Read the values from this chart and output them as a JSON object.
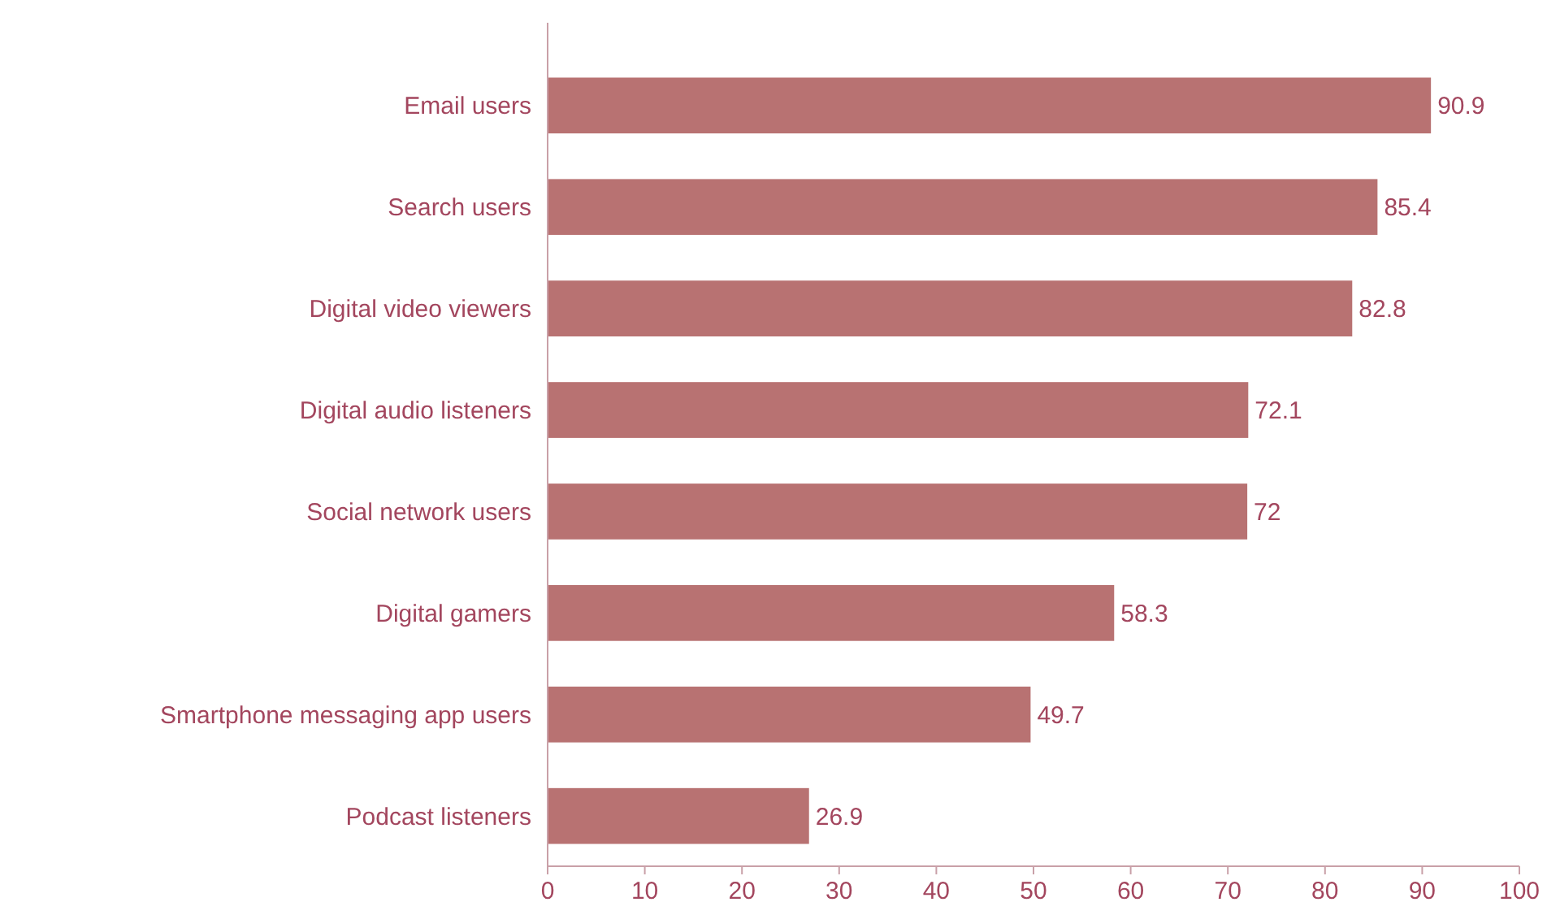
{
  "chart_data": {
    "type": "bar",
    "orientation": "horizontal",
    "categories": [
      "Email users",
      "Search users",
      "Digital video viewers",
      "Digital audio listeners",
      "Social network users",
      "Digital gamers",
      "Smartphone messaging app users",
      "Podcast listeners"
    ],
    "values": [
      90.9,
      85.4,
      82.8,
      72.1,
      72,
      58.3,
      49.7,
      26.9
    ],
    "color": "#b87272",
    "xlim": [
      0,
      100
    ],
    "xticks": [
      0,
      10,
      20,
      30,
      40,
      50,
      60,
      70,
      80,
      90,
      100
    ],
    "data_labels": true
  }
}
